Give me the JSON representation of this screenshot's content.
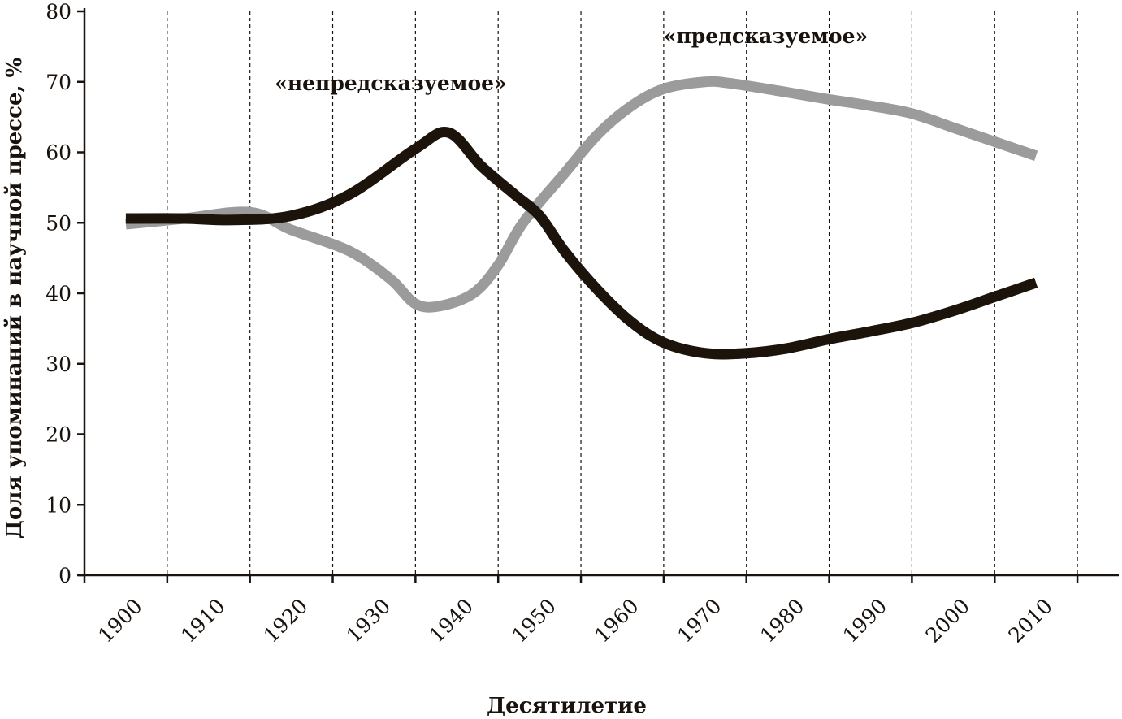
{
  "chart_data": {
    "type": "line",
    "xlabel": "Десятилетие",
    "ylabel": "Доля упоминаний в научной прессе, %",
    "x_ticks": [
      1900,
      1910,
      1920,
      1930,
      1940,
      1950,
      1960,
      1970,
      1980,
      1990,
      2000,
      2010
    ],
    "x_tick_labels": [
      "1900",
      "1910",
      "1920",
      "1930",
      "1940",
      "1950",
      "1960",
      "1970",
      "1980",
      "1990",
      "2000",
      "2010"
    ],
    "xlim": [
      1900,
      2025
    ],
    "ylim": [
      0,
      80
    ],
    "y_ticks": [
      0,
      10,
      20,
      30,
      40,
      50,
      60,
      70,
      80
    ],
    "y_tick_labels": [
      "0",
      "10",
      "20",
      "30",
      "40",
      "50",
      "60",
      "70",
      "80"
    ],
    "grid": "vertical dashed lines at each decade",
    "series": [
      {
        "name": "«непредсказуемое»",
        "color": "#1c130b",
        "x": [
          1905,
          1912,
          1918,
          1925,
          1932,
          1940,
          1944,
          1948,
          1952,
          1955,
          1958,
          1962,
          1966,
          1970,
          1975,
          1980,
          1985,
          1990,
          1995,
          2000,
          2005,
          2010,
          2015
        ],
        "y": [
          50.6,
          50.6,
          50.4,
          51.0,
          54.0,
          60.5,
          62.8,
          58.0,
          54.0,
          51.0,
          46.0,
          40.5,
          36.0,
          33.0,
          31.5,
          31.5,
          32.2,
          33.5,
          34.6,
          35.8,
          37.5,
          39.5,
          41.5
        ]
      },
      {
        "name": "«предсказуемое»",
        "color": "#9b9b9b",
        "x": [
          1905,
          1912,
          1920,
          1925,
          1932,
          1937,
          1940,
          1943,
          1947,
          1950,
          1953,
          1958,
          1962,
          1966,
          1970,
          1975,
          1978,
          1985,
          1990,
          1995,
          2000,
          2005,
          2010,
          2015
        ],
        "y": [
          49.8,
          50.6,
          51.5,
          49.0,
          46.0,
          42.0,
          38.5,
          38.2,
          40.0,
          44.0,
          50.0,
          57.0,
          62.5,
          66.5,
          69.0,
          70.0,
          69.8,
          68.5,
          67.5,
          66.6,
          65.5,
          63.5,
          61.5,
          59.5
        ]
      }
    ],
    "annotations": [
      {
        "text": "«непредсказуемое»",
        "x": 1923,
        "y": 68.8
      },
      {
        "text": "«предсказуемое»",
        "x": 1970,
        "y": 75.5
      }
    ]
  }
}
